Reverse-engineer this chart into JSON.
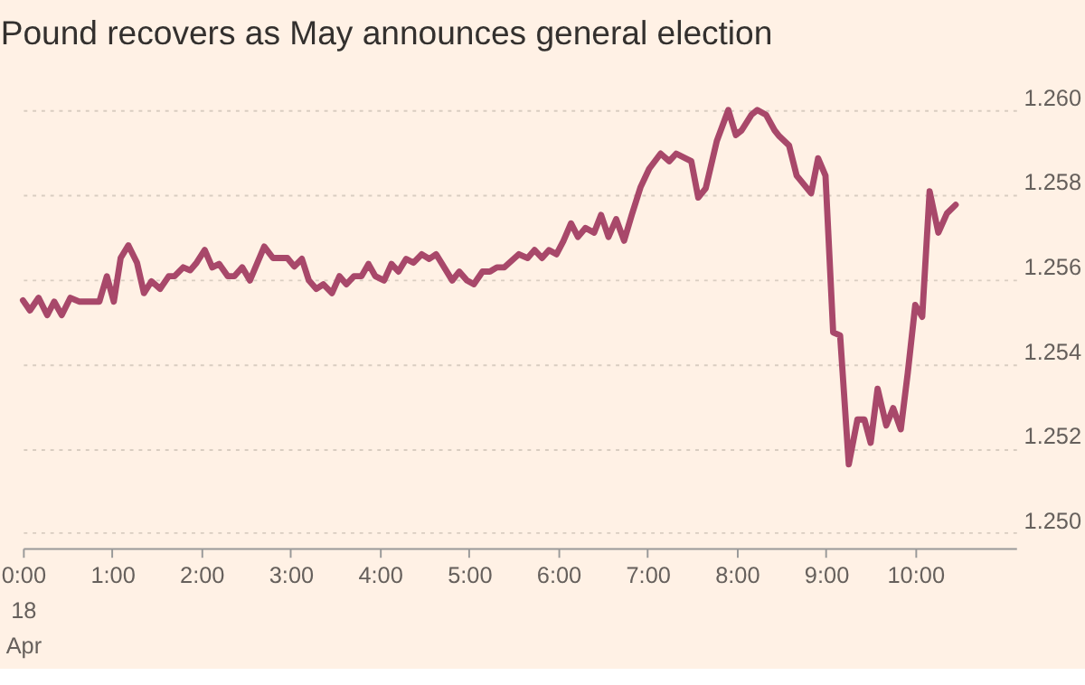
{
  "chart_data": {
    "type": "line",
    "title": "Pound recovers as May announces general election",
    "x": [
      0,
      0.078,
      0.175,
      0.272,
      0.35,
      0.434,
      0.531,
      0.628,
      0.856,
      0.94,
      1.018,
      1.095,
      1.181,
      1.278,
      1.356,
      1.44,
      1.537,
      1.634,
      1.698,
      1.796,
      1.874,
      1.946,
      2.037,
      2.121,
      2.198,
      2.296,
      2.368,
      2.457,
      2.543,
      2.704,
      2.802,
      2.963,
      3.041,
      3.126,
      3.204,
      3.288,
      3.366,
      3.463,
      3.547,
      3.624,
      3.71,
      3.794,
      3.872,
      3.949,
      4.047,
      4.13,
      4.208,
      4.294,
      4.377,
      4.469,
      4.553,
      4.63,
      4.811,
      4.889,
      4.975,
      5.053,
      5.15,
      5.233,
      5.311,
      5.395,
      5.558,
      5.656,
      5.733,
      5.817,
      5.895,
      5.979,
      6.056,
      6.142,
      6.22,
      6.304,
      6.401,
      6.479,
      6.562,
      6.648,
      6.737,
      6.823,
      6.92,
      7.018,
      7.146,
      7.243,
      7.321,
      7.49,
      7.568,
      7.652,
      7.776,
      7.905,
      7.99,
      8.054,
      8.165,
      8.23,
      8.327,
      8.424,
      8.477,
      8.586,
      8.671,
      8.833,
      8.911,
      8.994,
      9.08,
      9.158,
      9.255,
      9.352,
      9.43,
      9.5,
      9.578,
      9.675,
      9.753,
      9.838,
      9.916,
      10.0,
      10.078,
      10.161,
      10.259,
      10.356,
      10.453
    ],
    "series": [
      {
        "color": "#a8486a",
        "values": [
          1.2555,
          1.25526,
          1.25556,
          1.25515,
          1.25547,
          1.25515,
          1.25556,
          1.25547,
          1.25547,
          1.25607,
          1.25547,
          1.2565,
          1.2568,
          1.25639,
          1.25567,
          1.25595,
          1.25577,
          1.25607,
          1.25607,
          1.25628,
          1.25621,
          1.25639,
          1.25669,
          1.25628,
          1.25636,
          1.25607,
          1.25607,
          1.25628,
          1.25597,
          1.25677,
          1.2565,
          1.2565,
          1.2563,
          1.25648,
          1.25597,
          1.25577,
          1.25588,
          1.25567,
          1.25607,
          1.25588,
          1.25607,
          1.25607,
          1.25636,
          1.25607,
          1.25597,
          1.25636,
          1.25618,
          1.25648,
          1.25639,
          1.25659,
          1.25648,
          1.25659,
          1.25597,
          1.25618,
          1.25597,
          1.25588,
          1.25618,
          1.25618,
          1.25628,
          1.25628,
          1.25659,
          1.2565,
          1.25669,
          1.2565,
          1.25669,
          1.25659,
          1.2569,
          1.25732,
          1.257,
          1.25721,
          1.2571,
          1.25752,
          1.257,
          1.25742,
          1.25691,
          1.25752,
          1.25817,
          1.25861,
          1.25897,
          1.25879,
          1.25897,
          1.25879,
          1.25793,
          1.25815,
          1.25927,
          1.26,
          1.25941,
          1.25952,
          1.25989,
          1.26,
          1.25989,
          1.25952,
          1.25938,
          1.25916,
          1.25845,
          1.25803,
          1.25886,
          1.25845,
          1.25474,
          1.25467,
          1.25162,
          1.25268,
          1.25268,
          1.25213,
          1.25341,
          1.25254,
          1.25295,
          1.25245,
          1.25378,
          1.25539,
          1.25511,
          1.25808,
          1.2571,
          1.25756,
          1.25776
        ]
      }
    ],
    "xlim": [
      0,
      11.13
    ],
    "xticks": [
      {
        "value": 0,
        "label": "0:00\n18\nApr"
      },
      {
        "value": 1,
        "label": "1:00"
      },
      {
        "value": 2,
        "label": "2:00"
      },
      {
        "value": 3,
        "label": "3:00"
      },
      {
        "value": 4,
        "label": "4:00"
      },
      {
        "value": 5,
        "label": "5:00"
      },
      {
        "value": 6,
        "label": "6:00"
      },
      {
        "value": 7,
        "label": "7:00"
      },
      {
        "value": 8,
        "label": "8:00"
      },
      {
        "value": 9,
        "label": "9:00"
      },
      {
        "value": 10,
        "label": "10:00"
      }
    ],
    "ylim": [
      1.24964,
      1.26
    ],
    "yticks": [
      {
        "value": 1.25,
        "label": "1.250"
      },
      {
        "value": 1.252,
        "label": "1.252"
      },
      {
        "value": 1.254,
        "label": "1.254"
      },
      {
        "value": 1.256,
        "label": "1.256"
      },
      {
        "value": 1.258,
        "label": "1.258"
      },
      {
        "value": 1.26,
        "label": "1.260"
      }
    ],
    "grid": "y",
    "legend": false,
    "line_style": "solid",
    "marker": "none"
  }
}
